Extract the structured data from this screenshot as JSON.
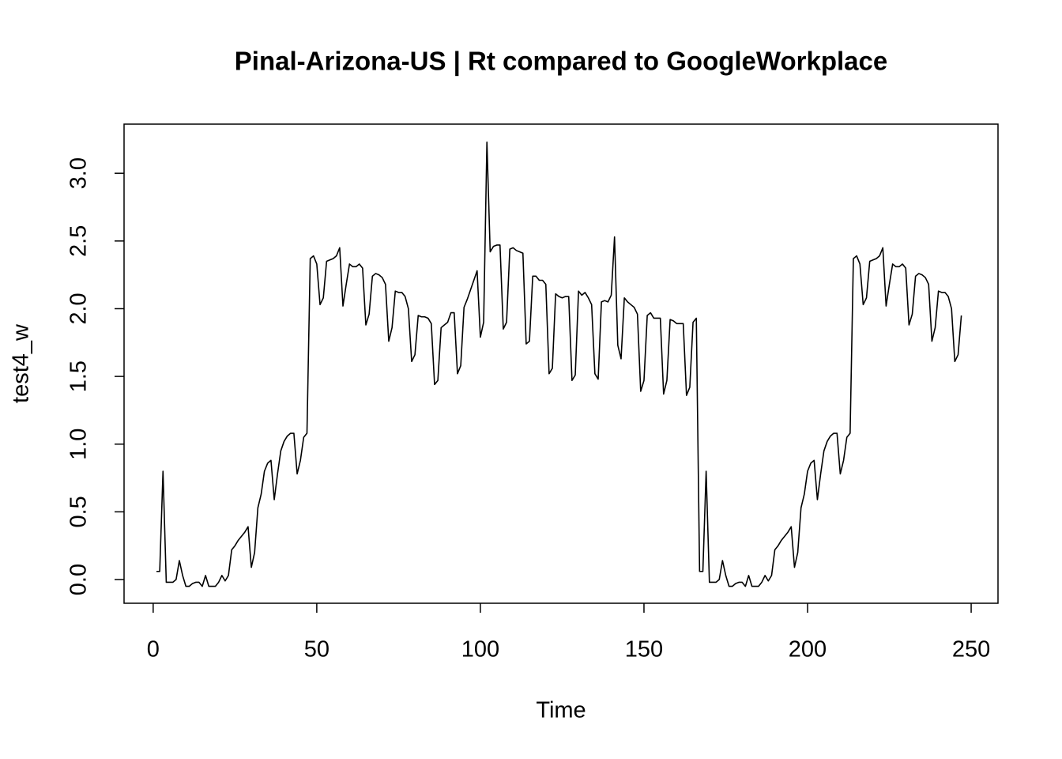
{
  "chart_data": {
    "type": "line",
    "title": "Pinal-Arizona-US | Rt compared to GoogleWorkplace",
    "xlabel": "Time",
    "ylabel": "test4_w",
    "x": [
      1,
      2,
      3,
      4,
      5,
      6,
      7,
      8,
      9,
      10,
      11,
      12,
      13,
      14,
      15,
      16,
      17,
      18,
      19,
      20,
      21,
      22,
      23,
      24,
      25,
      26,
      27,
      28,
      29,
      30,
      31,
      32,
      33,
      34,
      35,
      36,
      37,
      38,
      39,
      40,
      41,
      42,
      43,
      44,
      45,
      46,
      47,
      48,
      49,
      50,
      51,
      52,
      53,
      54,
      55,
      56,
      57,
      58,
      59,
      60,
      61,
      62,
      63,
      64,
      65,
      66,
      67,
      68,
      69,
      70,
      71,
      72,
      73,
      74,
      75,
      76,
      77,
      78,
      79,
      80,
      81,
      82,
      83,
      84,
      85,
      86,
      87,
      88,
      89,
      90,
      91,
      92,
      93,
      94,
      95,
      96,
      97,
      98,
      99,
      100,
      101,
      102,
      103,
      104,
      105,
      106,
      107,
      108,
      109,
      110,
      111,
      112,
      113,
      114,
      115,
      116,
      117,
      118,
      119,
      120,
      121,
      122,
      123,
      124,
      125,
      126,
      127,
      128,
      129,
      130,
      131,
      132,
      133,
      134,
      135,
      136,
      137,
      138,
      139,
      140,
      141,
      142,
      143,
      144,
      145,
      146,
      147,
      148,
      149,
      150,
      151,
      152,
      153,
      154,
      155,
      156,
      157,
      158,
      159,
      160,
      161,
      162,
      163,
      164,
      165,
      166,
      167,
      168,
      169,
      170,
      171,
      172,
      173,
      174,
      175,
      176,
      177,
      178,
      179,
      180,
      181,
      182,
      183,
      184,
      185,
      186,
      187,
      188,
      189,
      190,
      191,
      192,
      193,
      194,
      195,
      196,
      197,
      198,
      199,
      200,
      201,
      202,
      203,
      204,
      205,
      206,
      207,
      208,
      209,
      210,
      211,
      212,
      213,
      214,
      215,
      216,
      217,
      218,
      219,
      220,
      221,
      222,
      223,
      224,
      225,
      226,
      227,
      228,
      229,
      230,
      231,
      232,
      233,
      234,
      235,
      236,
      237,
      238,
      239,
      240,
      241,
      242,
      243,
      244,
      245,
      246,
      247
    ],
    "values": [
      0.06,
      0.06,
      0.8,
      -0.02,
      -0.02,
      -0.02,
      0.0,
      0.14,
      0.03,
      -0.05,
      -0.05,
      -0.03,
      -0.02,
      -0.02,
      -0.05,
      0.03,
      -0.05,
      -0.05,
      -0.05,
      -0.02,
      0.03,
      -0.01,
      0.03,
      0.22,
      0.25,
      0.29,
      0.32,
      0.35,
      0.39,
      0.09,
      0.2,
      0.53,
      0.63,
      0.8,
      0.86,
      0.88,
      0.59,
      0.78,
      0.95,
      1.02,
      1.06,
      1.08,
      1.08,
      0.78,
      0.88,
      1.05,
      1.08,
      2.37,
      2.39,
      2.33,
      2.03,
      2.08,
      2.35,
      2.36,
      2.37,
      2.39,
      2.45,
      2.02,
      2.18,
      2.33,
      2.31,
      2.31,
      2.33,
      2.3,
      1.88,
      1.96,
      2.24,
      2.26,
      2.25,
      2.23,
      2.18,
      1.76,
      1.86,
      2.13,
      2.12,
      2.12,
      2.09,
      2.0,
      1.61,
      1.66,
      1.95,
      1.94,
      1.94,
      1.93,
      1.89,
      1.44,
      1.47,
      1.86,
      1.88,
      1.9,
      1.97,
      1.97,
      1.52,
      1.58,
      2.01,
      2.07,
      2.14,
      2.21,
      2.28,
      1.79,
      1.9,
      3.23,
      2.42,
      2.46,
      2.47,
      2.47,
      1.85,
      1.9,
      2.44,
      2.45,
      2.43,
      2.42,
      2.41,
      1.74,
      1.76,
      2.24,
      2.24,
      2.21,
      2.21,
      2.18,
      1.52,
      1.56,
      2.11,
      2.09,
      2.08,
      2.09,
      2.09,
      1.47,
      1.51,
      2.13,
      2.1,
      2.12,
      2.08,
      2.03,
      1.52,
      1.48,
      2.05,
      2.06,
      2.05,
      2.1,
      2.53,
      1.73,
      1.63,
      2.08,
      2.05,
      2.03,
      2.01,
      1.96,
      1.39,
      1.47,
      1.95,
      1.97,
      1.93,
      1.93,
      1.93,
      1.37,
      1.47,
      1.92,
      1.91,
      1.89,
      1.89,
      1.89,
      1.36,
      1.42,
      1.9,
      1.93,
      0.06,
      0.06,
      0.8,
      -0.02,
      -0.02,
      -0.02,
      0.0,
      0.14,
      0.03,
      -0.05,
      -0.05,
      -0.03,
      -0.02,
      -0.02,
      -0.05,
      0.03,
      -0.05,
      -0.05,
      -0.05,
      -0.02,
      0.03,
      -0.01,
      0.03,
      0.22,
      0.25,
      0.29,
      0.32,
      0.35,
      0.39,
      0.09,
      0.2,
      0.53,
      0.63,
      0.8,
      0.86,
      0.88,
      0.59,
      0.78,
      0.95,
      1.02,
      1.06,
      1.08,
      1.08,
      0.78,
      0.88,
      1.05,
      1.08,
      2.37,
      2.39,
      2.33,
      2.03,
      2.08,
      2.35,
      2.36,
      2.37,
      2.39,
      2.45,
      2.02,
      2.18,
      2.33,
      2.31,
      2.31,
      2.33,
      2.3,
      1.88,
      1.96,
      2.24,
      2.26,
      2.25,
      2.23,
      2.18,
      1.76,
      1.86,
      2.13,
      2.12,
      2.12,
      2.09,
      2.0,
      1.61,
      1.66,
      1.95
    ],
    "color": "#000000",
    "xlim": [
      -8.9,
      258.2
    ],
    "ylim": [
      -0.175,
      3.363
    ],
    "xticks": [
      0,
      50,
      100,
      150,
      200,
      250
    ],
    "yticks": [
      {
        "value": 0,
        "label": "0.0"
      },
      {
        "value": 0.5,
        "label": "0.5"
      },
      {
        "value": 1,
        "label": "1.0"
      },
      {
        "value": 1.5,
        "label": "1.5"
      },
      {
        "value": 2,
        "label": "2.0"
      },
      {
        "value": 2.5,
        "label": "2.5"
      },
      {
        "value": 3,
        "label": "3.0"
      }
    ],
    "grid": false
  }
}
